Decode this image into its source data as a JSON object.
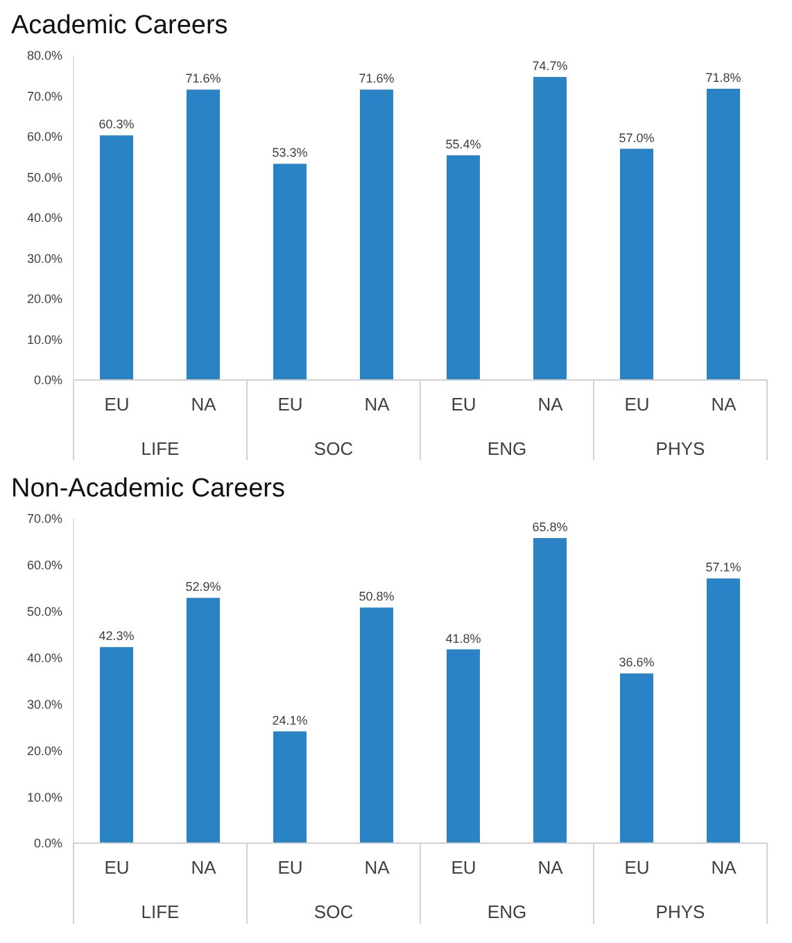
{
  "chart_data": [
    {
      "type": "bar",
      "title": "Academic Careers",
      "categories": [
        "EU",
        "NA",
        "EU",
        "NA",
        "EU",
        "NA",
        "EU",
        "NA"
      ],
      "values": [
        60.3,
        71.6,
        53.3,
        71.6,
        55.4,
        74.7,
        57.0,
        71.8
      ],
      "value_labels": [
        "60.3%",
        "71.6%",
        "53.3%",
        "71.6%",
        "55.4%",
        "74.7%",
        "57.0%",
        "71.8%"
      ],
      "color": "#2a83c4",
      "ylim": [
        0,
        80
      ],
      "yticks": [
        {
          "value": 0,
          "label": "0.0%"
        },
        {
          "value": 10,
          "label": "10.0%"
        },
        {
          "value": 20,
          "label": "20.0%"
        },
        {
          "value": 30,
          "label": "30.0%"
        },
        {
          "value": 40,
          "label": "40.0%"
        },
        {
          "value": 50,
          "label": "50.0%"
        },
        {
          "value": 60,
          "label": "60.0%"
        },
        {
          "value": 70,
          "label": "70.0%"
        },
        {
          "value": 80,
          "label": "80.0%"
        }
      ],
      "annotations": [
        "LIFE",
        "SOC",
        "ENG",
        "PHYS"
      ],
      "grid": false,
      "legend": false
    },
    {
      "type": "bar",
      "title": "Non-Academic Careers",
      "categories": [
        "EU",
        "NA",
        "EU",
        "NA",
        "EU",
        "NA",
        "EU",
        "NA"
      ],
      "values": [
        42.3,
        52.9,
        24.1,
        50.8,
        41.8,
        65.8,
        36.6,
        57.1
      ],
      "value_labels": [
        "42.3%",
        "52.9%",
        "24.1%",
        "50.8%",
        "41.8%",
        "65.8%",
        "36.6%",
        "57.1%"
      ],
      "color": "#2a83c4",
      "ylim": [
        0,
        70
      ],
      "yticks": [
        {
          "value": 0,
          "label": "0.0%"
        },
        {
          "value": 10,
          "label": "10.0%"
        },
        {
          "value": 20,
          "label": "20.0%"
        },
        {
          "value": 30,
          "label": "30.0%"
        },
        {
          "value": 40,
          "label": "40.0%"
        },
        {
          "value": 50,
          "label": "50.0%"
        },
        {
          "value": 60,
          "label": "60.0%"
        },
        {
          "value": 70,
          "label": "70.0%"
        }
      ],
      "annotations": [
        "LIFE",
        "SOC",
        "ENG",
        "PHYS"
      ],
      "grid": false,
      "legend": false
    }
  ]
}
